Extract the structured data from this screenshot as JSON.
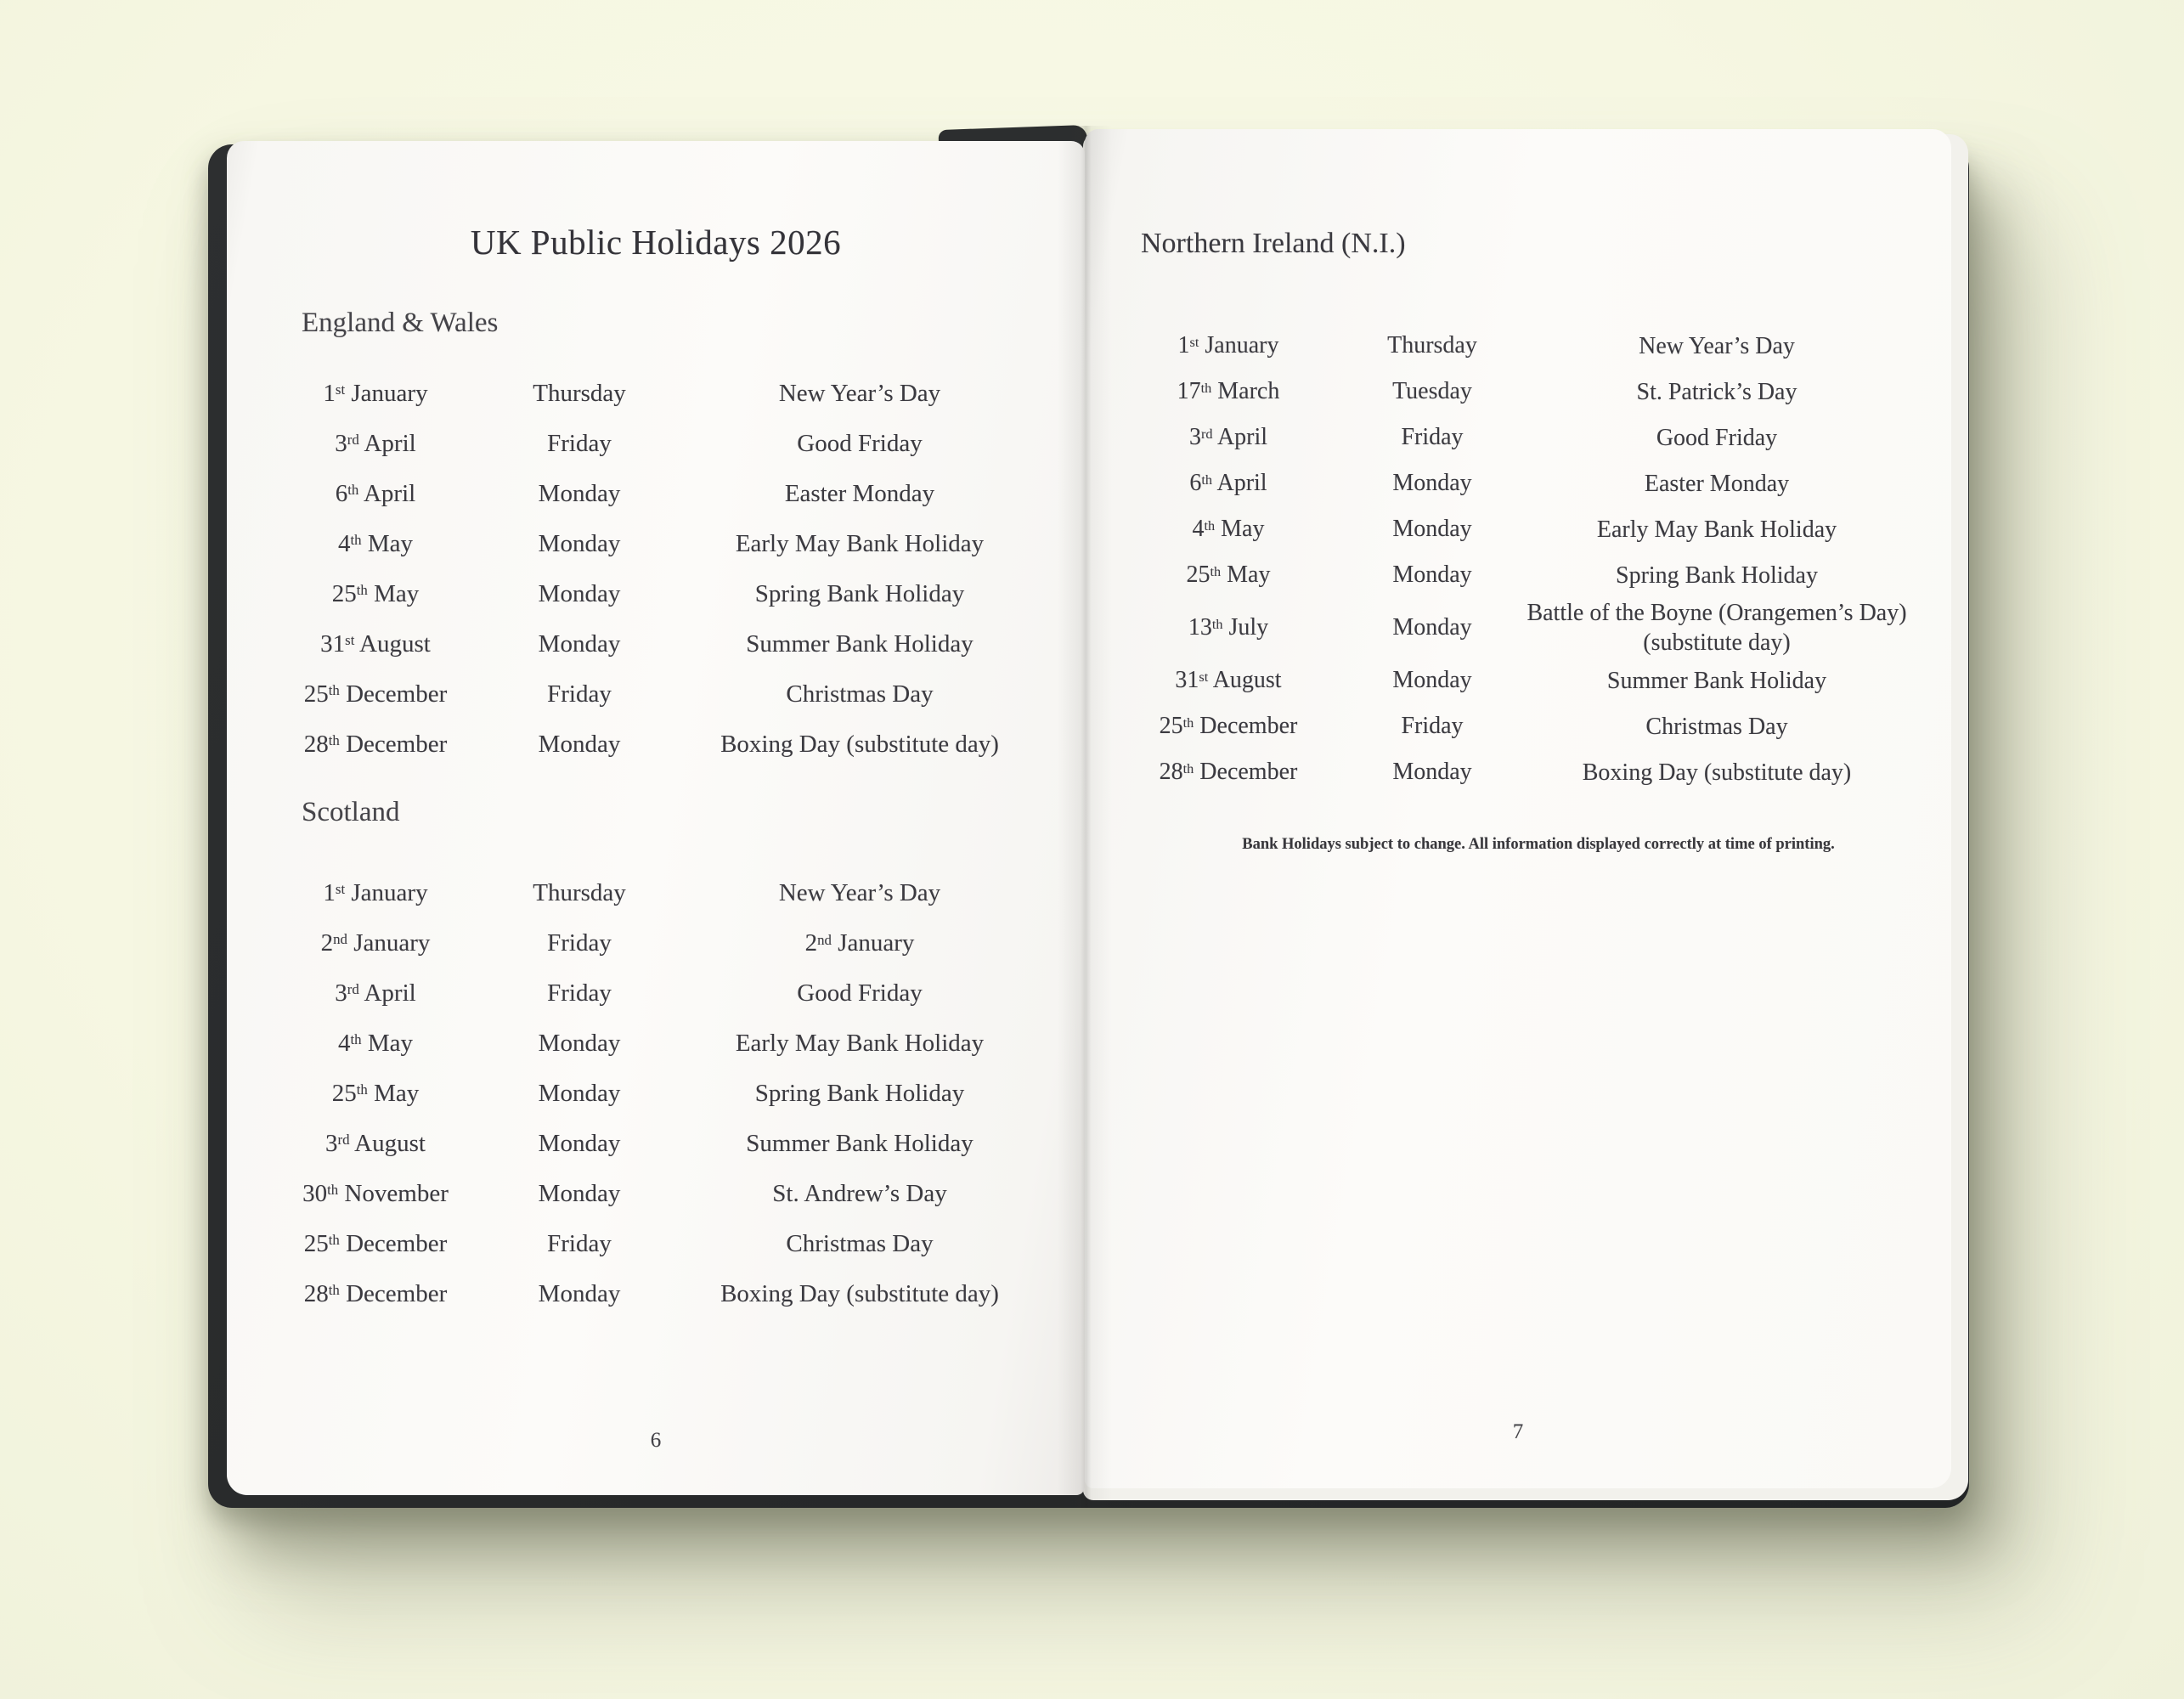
{
  "colors": {
    "background": "#f6f7e2",
    "cover": "#282a2b",
    "page": "#fbfaf7",
    "undersheet": "#f2f1ec",
    "ink": "#3b3a40"
  },
  "left_page": {
    "title": "UK Public Holidays 2026",
    "page_number": "6",
    "sections": [
      {
        "heading": "England & Wales",
        "rows": [
          {
            "date": "1st January",
            "day": "Thursday",
            "holiday": "New Year’s Day"
          },
          {
            "date": "3rd April",
            "day": "Friday",
            "holiday": "Good Friday"
          },
          {
            "date": "6th April",
            "day": "Monday",
            "holiday": "Easter Monday"
          },
          {
            "date": "4th May",
            "day": "Monday",
            "holiday": "Early May Bank Holiday"
          },
          {
            "date": "25th May",
            "day": "Monday",
            "holiday": "Spring Bank Holiday"
          },
          {
            "date": "31st August",
            "day": "Monday",
            "holiday": "Summer Bank Holiday"
          },
          {
            "date": "25th December",
            "day": "Friday",
            "holiday": "Christmas Day"
          },
          {
            "date": "28th December",
            "day": "Monday",
            "holiday": "Boxing Day (substitute day)"
          }
        ]
      },
      {
        "heading": "Scotland",
        "rows": [
          {
            "date": "1st January",
            "day": "Thursday",
            "holiday": "New Year’s Day"
          },
          {
            "date": "2nd January",
            "day": "Friday",
            "holiday": "2nd January"
          },
          {
            "date": "3rd April",
            "day": "Friday",
            "holiday": "Good Friday"
          },
          {
            "date": "4th May",
            "day": "Monday",
            "holiday": "Early May Bank Holiday"
          },
          {
            "date": "25th May",
            "day": "Monday",
            "holiday": "Spring Bank Holiday"
          },
          {
            "date": "3rd August",
            "day": "Monday",
            "holiday": "Summer Bank Holiday"
          },
          {
            "date": "30th November",
            "day": "Monday",
            "holiday": "St. Andrew’s Day"
          },
          {
            "date": "25th December",
            "day": "Friday",
            "holiday": "Christmas Day"
          },
          {
            "date": "28th December",
            "day": "Monday",
            "holiday": "Boxing Day (substitute day)"
          }
        ]
      }
    ]
  },
  "right_page": {
    "heading": "Northern Ireland (N.I.)",
    "page_number": "7",
    "rows": [
      {
        "date": "1st January",
        "day": "Thursday",
        "holiday": "New Year’s Day"
      },
      {
        "date": "17th March",
        "day": "Tuesday",
        "holiday": "St. Patrick’s Day"
      },
      {
        "date": "3rd April",
        "day": "Friday",
        "holiday": "Good Friday"
      },
      {
        "date": "6th April",
        "day": "Monday",
        "holiday": "Easter Monday"
      },
      {
        "date": "4th May",
        "day": "Monday",
        "holiday": "Early May Bank Holiday"
      },
      {
        "date": "25th May",
        "day": "Monday",
        "holiday": "Spring Bank Holiday"
      },
      {
        "date": "13th July",
        "day": "Monday",
        "holiday": "Battle of the Boyne (Orangemen’s Day)",
        "holiday2": "(substitute day)"
      },
      {
        "date": "31st August",
        "day": "Monday",
        "holiday": "Summer Bank Holiday"
      },
      {
        "date": "25th December",
        "day": "Friday",
        "holiday": "Christmas Day"
      },
      {
        "date": "28th December",
        "day": "Monday",
        "holiday": "Boxing Day (substitute day)"
      }
    ],
    "footnote": "Bank Holidays subject to change. All information displayed correctly at time of printing."
  }
}
